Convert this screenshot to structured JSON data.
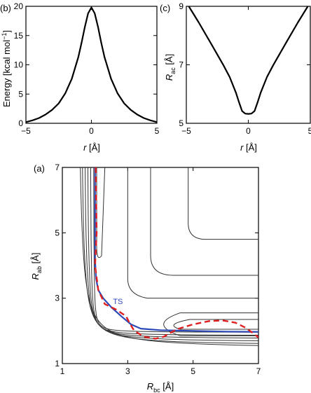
{
  "chart_data": [
    {
      "panel": "(b)",
      "type": "line",
      "xlabel": "r [Å]",
      "ylabel": "Energy [kcal mol−1]",
      "xlim": [
        -5,
        5
      ],
      "ylim": [
        0,
        20
      ],
      "xticks": [
        -5,
        0,
        5
      ],
      "yticks": [
        0,
        5,
        10,
        15,
        20
      ],
      "series": [
        {
          "x": [
            -5,
            -4.5,
            -4,
            -3.5,
            -3,
            -2.5,
            -2,
            -1.5,
            -1,
            -0.75,
            -0.5,
            -0.25,
            0,
            0.25,
            0.5,
            0.75,
            1,
            1.5,
            2,
            2.5,
            3,
            3.5,
            4,
            4.5,
            5
          ],
          "y": [
            0.2,
            0.5,
            0.9,
            1.5,
            2.3,
            3.4,
            5.1,
            7.6,
            11.3,
            13.8,
            16.5,
            18.8,
            19.8,
            18.8,
            16.5,
            13.8,
            11.3,
            7.6,
            5.1,
            3.4,
            2.3,
            1.5,
            0.9,
            0.5,
            0.2
          ]
        }
      ]
    },
    {
      "panel": "(c)",
      "type": "line",
      "xlabel": "r [Å]",
      "ylabel": "Rac [Å]",
      "xlim": [
        -5,
        5
      ],
      "ylim": [
        5,
        9
      ],
      "xticks": [
        -5,
        0,
        5
      ],
      "yticks": [
        5,
        7,
        9
      ],
      "series": [
        {
          "x": [
            -4.8,
            -4,
            -3,
            -2,
            -1.5,
            -1,
            -0.75,
            -0.5,
            -0.25,
            0,
            0.25,
            0.5,
            0.75,
            1,
            1.5,
            2,
            3,
            4,
            4.8
          ],
          "y": [
            9.0,
            8.45,
            7.72,
            6.98,
            6.58,
            6.05,
            5.72,
            5.42,
            5.33,
            5.32,
            5.33,
            5.42,
            5.72,
            6.05,
            6.58,
            6.98,
            7.72,
            8.45,
            9.0
          ]
        }
      ]
    },
    {
      "panel": "(a)",
      "type": "contour",
      "xlabel": "Rbc [Å]",
      "ylabel": "Rab [Å]",
      "xlim": [
        1,
        7
      ],
      "ylim": [
        1,
        7
      ],
      "xticks": [
        1,
        3,
        5,
        7
      ],
      "yticks": [
        1,
        3,
        5,
        7
      ],
      "annotation": "TS",
      "contour_levels": [
        {
          "asymptote_x": 1.45,
          "asymptote_y": 1.45,
          "radius": 0.75
        },
        {
          "asymptote_x": 1.55,
          "asymptote_y": 1.55,
          "radius": 0.6
        },
        {
          "asymptote_x": 1.65,
          "asymptote_y": 1.65,
          "radius": 0.5
        },
        {
          "asymptote_x": 1.75,
          "asymptote_y": 1.75,
          "radius": 0.4
        },
        {
          "asymptote_x": 1.85,
          "asymptote_y": 1.85,
          "radius": 0.3
        },
        {
          "asymptote_x": 1.95,
          "asymptote_y": 1.95,
          "radius": 0.22
        }
      ],
      "series": [
        {
          "name": "path",
          "color": "#2c49b8",
          "x": [
            2.0,
            2.0,
            2.03,
            2.1,
            2.25,
            2.5,
            2.8,
            3.1,
            3.4,
            4.0,
            5.0,
            6.0,
            7.0
          ],
          "y": [
            7.0,
            4.2,
            3.6,
            3.25,
            3.0,
            2.72,
            2.45,
            2.2,
            2.07,
            2.02,
            2.0,
            1.98,
            1.97
          ]
        },
        {
          "name": "trajectory",
          "color": "#e02020",
          "x": [
            2.02,
            2.05,
            2.0,
            2.1,
            2.3,
            2.65,
            2.95,
            3.05,
            3.2,
            3.5,
            3.85,
            4.1,
            4.5,
            5.0,
            5.5,
            5.9,
            6.3,
            6.6,
            6.85,
            7.0
          ],
          "y": [
            7.0,
            5.0,
            4.0,
            3.25,
            2.82,
            2.65,
            2.45,
            2.25,
            2.0,
            1.82,
            1.76,
            1.82,
            2.05,
            2.2,
            2.3,
            2.32,
            2.25,
            2.1,
            1.92,
            1.8
          ]
        }
      ]
    }
  ],
  "labels": {
    "b_panel": "(b)",
    "b_ylabel": "Energy [kcal mol",
    "b_ylabel_sup": "−1",
    "b_ylabel_close": "]",
    "c_panel": "(c)",
    "c_ylabel_main": "R",
    "c_ylabel_sub": "ac",
    "c_ylabel_unit": " [Å]",
    "r_xlabel_main": "r",
    "r_xlabel_unit": " [Å]",
    "a_panel": "(a)",
    "a_ylabel_main": "R",
    "a_ylabel_sub": "ab",
    "a_ylabel_unit": " [Å]",
    "a_xlabel_main": "R",
    "a_xlabel_sub": "bc",
    "a_xlabel_unit": " [Å]",
    "ts_label": "TS"
  }
}
